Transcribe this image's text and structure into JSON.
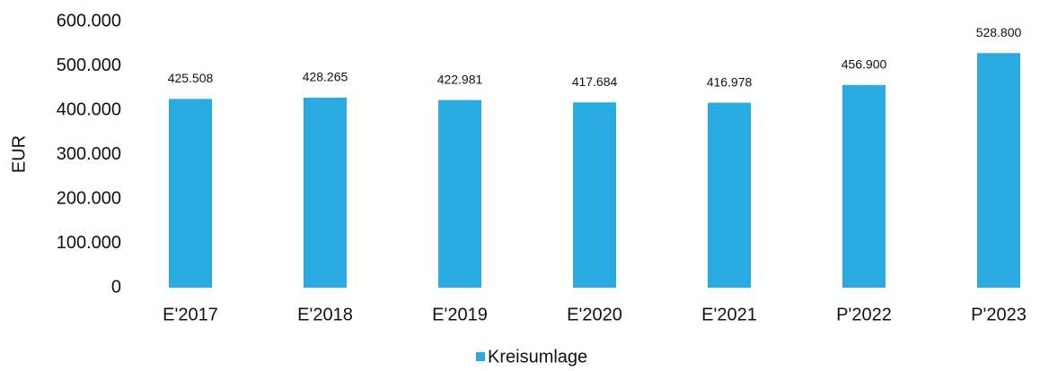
{
  "chart_data": {
    "type": "bar",
    "ylabel": "EUR",
    "categories": [
      "E'2017",
      "E'2018",
      "E'2019",
      "E'2020",
      "E'2021",
      "P'2022",
      "P'2023"
    ],
    "series": [
      {
        "name": "Kreisumlage",
        "color": "#29abe2",
        "values": [
          425508,
          428265,
          422981,
          417684,
          416978,
          456900,
          528800
        ],
        "value_labels": [
          "425.508",
          "428.265",
          "422.981",
          "417.684",
          "416.978",
          "456.900",
          "528.800"
        ]
      }
    ],
    "ylim": [
      0,
      600000
    ],
    "yticks": [
      0,
      {
        "value": 100000,
        "label": "100.000"
      },
      {
        "value": 200000,
        "label": "200.000"
      },
      {
        "value": 300000,
        "label": "300.000"
      },
      {
        "value": 400000,
        "label": "400.000"
      },
      {
        "value": 500000,
        "label": "500.000"
      },
      {
        "value": 600000,
        "label": "600.000"
      }
    ],
    "grid": false,
    "legend": "bottom"
  }
}
